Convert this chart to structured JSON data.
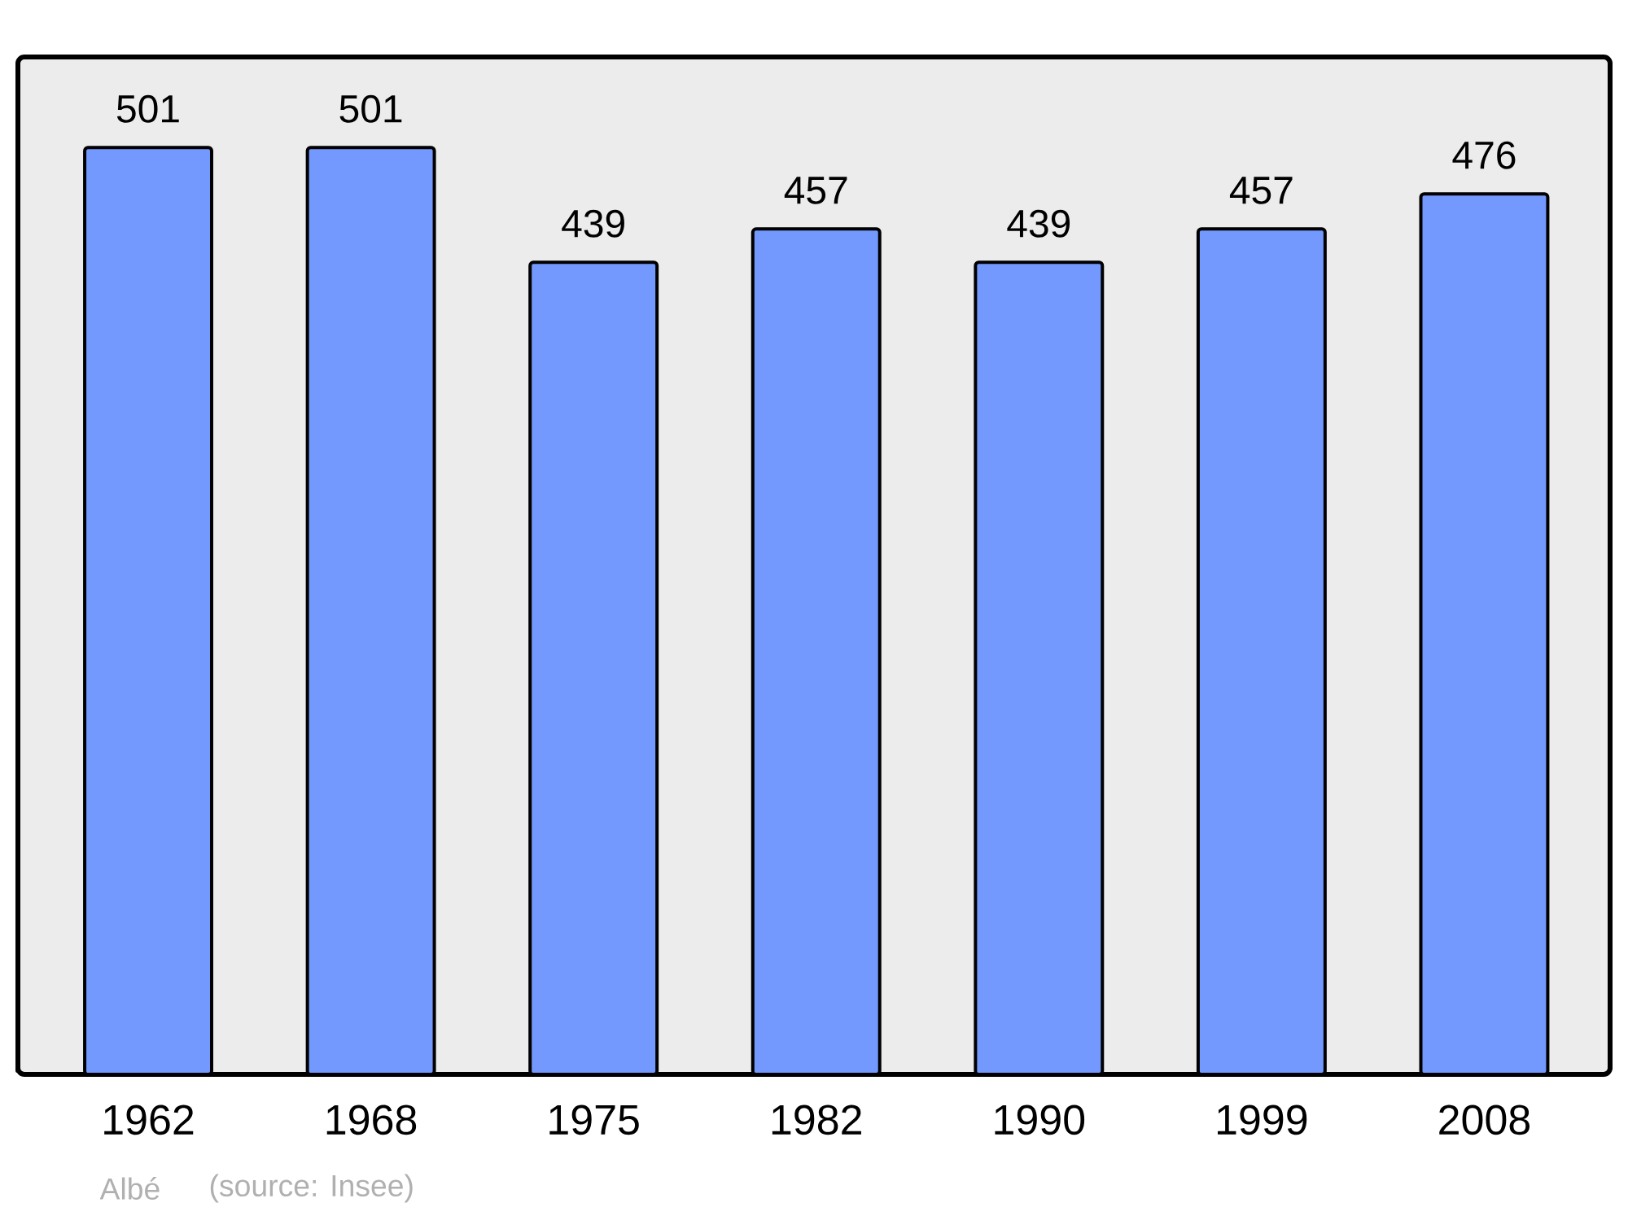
{
  "chart_data": {
    "type": "bar",
    "categories": [
      "1962",
      "1968",
      "1975",
      "1982",
      "1990",
      "1999",
      "2008"
    ],
    "values": [
      501,
      501,
      439,
      457,
      439,
      457,
      476
    ],
    "color": "#7399ff",
    "ylim": [
      0,
      550
    ],
    "data_labels": true,
    "tick_labels": "x",
    "annotations": [
      "Albé",
      "(source: Insee)"
    ]
  }
}
